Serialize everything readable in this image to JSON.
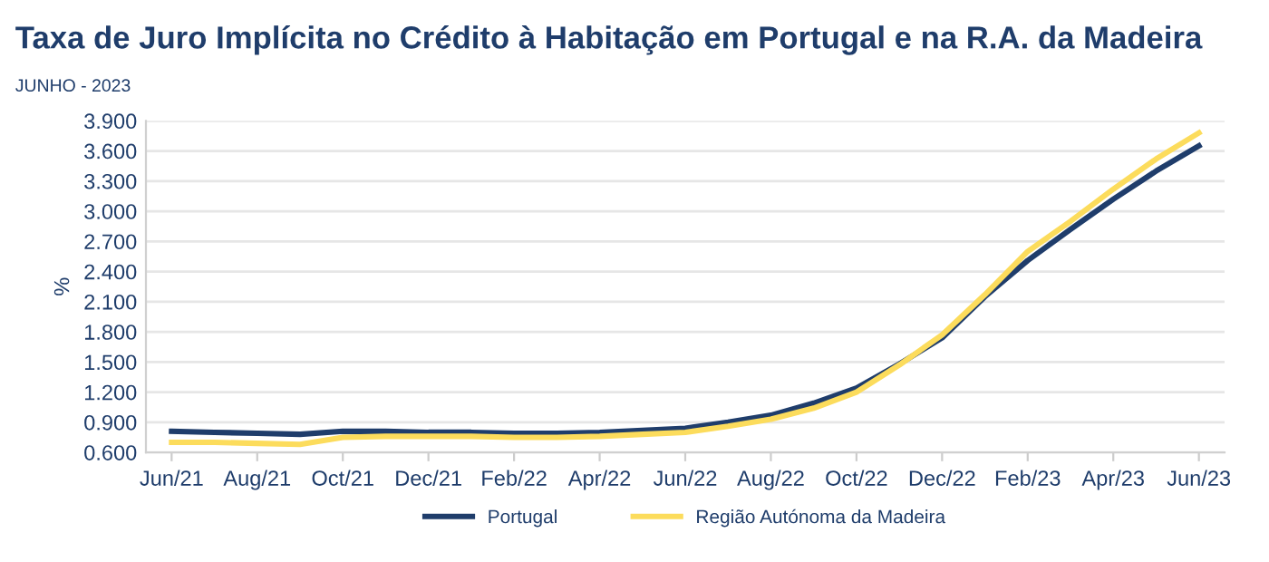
{
  "chart_data": {
    "type": "line",
    "title": "Taxa de Juro Implícita no Crédito à Habitação em Portugal e na R.A. da Madeira",
    "subtitle": "JUNHO - 2023",
    "ylabel": "%",
    "categories": [
      "Jun/21",
      null,
      "Aug/21",
      null,
      "Oct/21",
      null,
      "Dec/21",
      null,
      "Feb/22",
      null,
      "Apr/22",
      null,
      "Jun/22",
      null,
      "Aug/22",
      null,
      "Oct/22",
      null,
      "Dec/22",
      null,
      "Feb/23",
      null,
      "Apr/23",
      null,
      "Jun/23"
    ],
    "series": [
      {
        "name": "Portugal",
        "color": "#1f3d6b",
        "values": [
          0.81,
          0.8,
          0.79,
          0.78,
          0.81,
          0.81,
          0.8,
          0.8,
          0.79,
          0.79,
          0.8,
          0.82,
          0.84,
          0.9,
          0.97,
          1.09,
          1.24,
          1.48,
          1.74,
          2.15,
          2.51,
          2.82,
          3.12,
          3.4,
          3.65
        ]
      },
      {
        "name": "Região Autónoma da Madeira",
        "color": "#fcdc5c",
        "values": [
          0.7,
          0.7,
          0.69,
          0.68,
          0.75,
          0.76,
          0.76,
          0.76,
          0.75,
          0.75,
          0.76,
          0.78,
          0.8,
          0.86,
          0.93,
          1.04,
          1.2,
          1.47,
          1.77,
          2.17,
          2.6,
          2.9,
          3.22,
          3.52,
          3.78
        ]
      }
    ],
    "ylim": [
      0.6,
      3.9
    ],
    "yticks": [
      {
        "value": 0.6,
        "label": "0.600"
      },
      {
        "value": 0.9,
        "label": "0.900"
      },
      {
        "value": 1.2,
        "label": "1.200"
      },
      {
        "value": 1.5,
        "label": "1.500"
      },
      {
        "value": 1.8,
        "label": "1.800"
      },
      {
        "value": 2.1,
        "label": "2.100"
      },
      {
        "value": 2.4,
        "label": "2.400"
      },
      {
        "value": 2.7,
        "label": "2.700"
      },
      {
        "value": 3.0,
        "label": "3.000"
      },
      {
        "value": 3.3,
        "label": "3.300"
      },
      {
        "value": 3.6,
        "label": "3.600"
      },
      {
        "value": 3.9,
        "label": "3.900"
      }
    ],
    "grid": "y",
    "legend": "bottom",
    "marker": "none",
    "line_style": "solid"
  }
}
